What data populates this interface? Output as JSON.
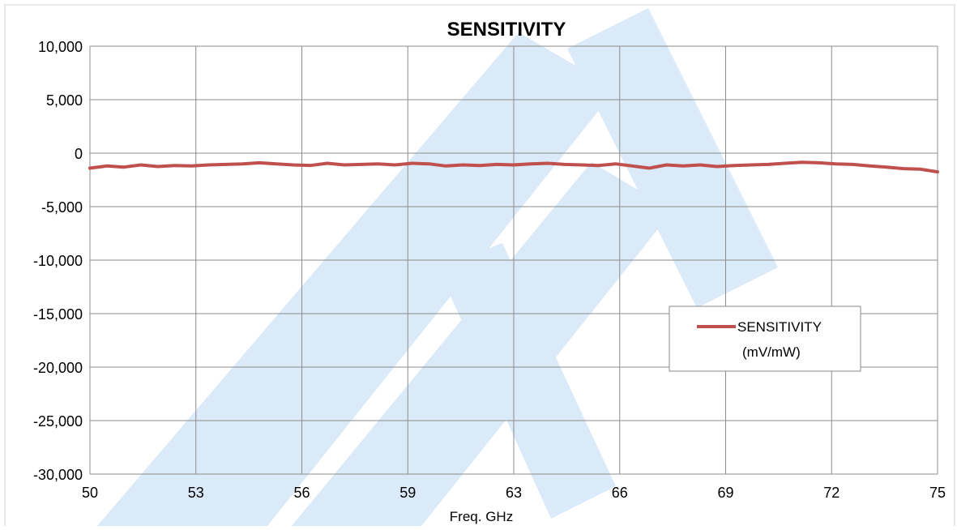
{
  "chart_data": {
    "type": "line",
    "title": "SENSITIVITY",
    "xlabel": "Freq. GHz",
    "ylabel": "",
    "x_ticks": [
      "50",
      "53",
      "56",
      "59",
      "63",
      "66",
      "69",
      "72",
      "75"
    ],
    "y_ticks": [
      "10,000",
      "5,000",
      "0",
      "-5,000",
      "-10,000",
      "-15,000",
      "-20,000",
      "-25,000",
      "-30,000"
    ],
    "xlim": [
      50,
      75
    ],
    "ylim": [
      -30000,
      10000
    ],
    "grid": true,
    "legend_position": "right",
    "series": [
      {
        "name": "SENSITIVITY (mV/mW)",
        "color": "#c0504d",
        "x": [
          50,
          50.5,
          51,
          51.5,
          52,
          52.5,
          53,
          53.5,
          54,
          54.5,
          55,
          55.5,
          56,
          56.5,
          57,
          57.5,
          58,
          58.5,
          59,
          59.5,
          60,
          60.5,
          61,
          61.5,
          62,
          62.5,
          63,
          63.5,
          64,
          64.5,
          65,
          65.5,
          66,
          66.5,
          67,
          67.5,
          68,
          68.5,
          69,
          69.5,
          70,
          70.5,
          71,
          71.5,
          72,
          72.5,
          73,
          73.5,
          74,
          74.5,
          75
        ],
        "values": [
          -1400,
          -1200,
          -1300,
          -1100,
          -1250,
          -1150,
          -1200,
          -1100,
          -1050,
          -1000,
          -900,
          -1000,
          -1100,
          -1150,
          -950,
          -1100,
          -1050,
          -1000,
          -1100,
          -950,
          -1000,
          -1200,
          -1100,
          -1150,
          -1050,
          -1100,
          -1000,
          -950,
          -1050,
          -1100,
          -1150,
          -1000,
          -1200,
          -1400,
          -1100,
          -1200,
          -1100,
          -1250,
          -1150,
          -1100,
          -1050,
          -950,
          -850,
          -900,
          -1000,
          -1050,
          -1200,
          -1300,
          -1450,
          -1500,
          -1750
        ]
      }
    ]
  },
  "legend": {
    "line1": "SENSITIVITY",
    "line2": "(mV/mW)"
  }
}
